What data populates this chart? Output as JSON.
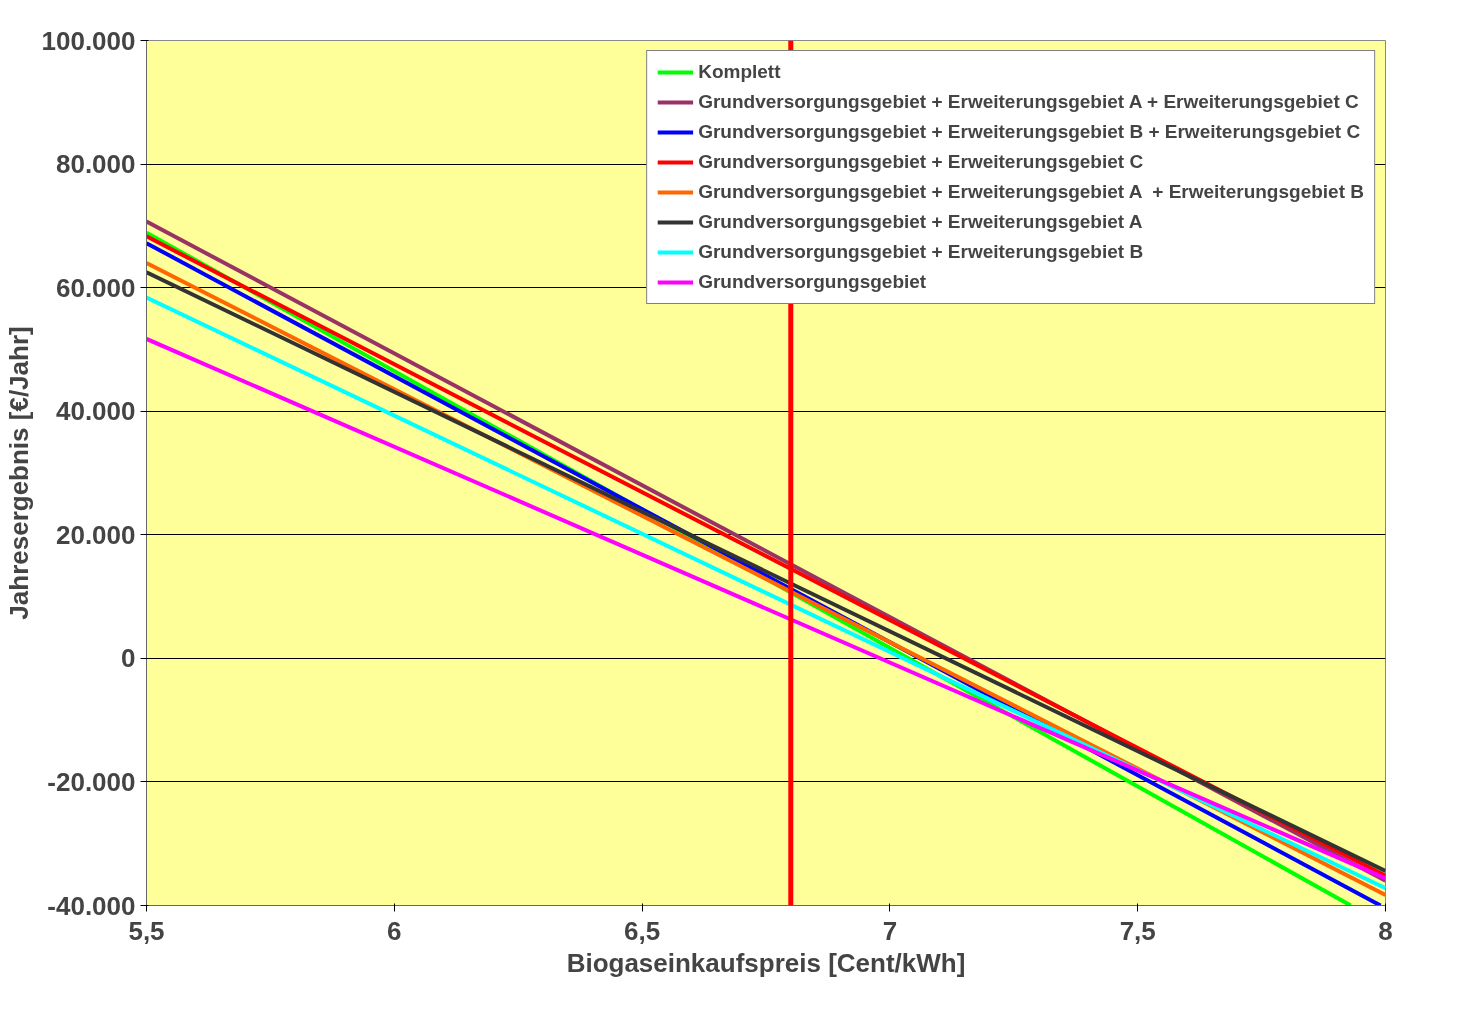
{
  "chart_data": {
    "type": "line",
    "xlabel": "Biogaseinkaufspreis [Cent/kWh]",
    "ylabel": "Jahresergebnis [€/Jahr]",
    "xlim": [
      5.5,
      8
    ],
    "xticks": [
      {
        "value": 5.5,
        "label": "5,5"
      },
      6,
      {
        "value": 6.5,
        "label": "6,5"
      },
      7,
      {
        "value": 7.5,
        "label": "7,5"
      },
      8
    ],
    "ylim": [
      -40000,
      100000
    ],
    "yticks": [
      {
        "value": -40000,
        "label": "-40.000"
      },
      {
        "value": -20000,
        "label": "-20.000"
      },
      {
        "value": 0,
        "label": "0"
      },
      {
        "value": 20000,
        "label": "20.000"
      },
      {
        "value": 40000,
        "label": "40.000"
      },
      {
        "value": 60000,
        "label": "60.000"
      },
      {
        "value": 80000,
        "label": "80.000"
      },
      {
        "value": 100000,
        "label": "100.000"
      }
    ],
    "grid": "y",
    "legend": "top right",
    "marker": "none",
    "line_style": "solid",
    "ref_lines": [
      {
        "axis": "x",
        "value": 6.8,
        "color": "#ff0000"
      }
    ],
    "series": [
      {
        "name": "Komplett",
        "color": "#00ff00",
        "x": [
          5.5,
          7.93
        ],
        "values": [
          68900,
          -40000
        ]
      },
      {
        "name": "Grundversorgungsgebiet + Erweiterungsgebiet A + Erweiterungsgebiet C",
        "color": "#993366",
        "x": [
          5.5,
          8
        ],
        "values": [
          70700,
          -36000
        ]
      },
      {
        "name": "Grundversorgungsgebiet + Erweiterungsgebiet B + Erweiterungsgebiet C",
        "color": "#0000ff",
        "x": [
          5.5,
          7.99
        ],
        "values": [
          67200,
          -40000
        ]
      },
      {
        "name": "Grundversorgungsgebiet + Erweiterungsgebiet C",
        "color": "#ff0000",
        "x": [
          5.5,
          8
        ],
        "values": [
          68300,
          -35200
        ]
      },
      {
        "name": "Grundversorgungsgebiet + Erweiterungsgebiet A  + Erweiterungsgebiet B",
        "color": "#ff6600",
        "x": [
          5.5,
          8
        ],
        "values": [
          64000,
          -38300
        ]
      },
      {
        "name": "Grundversorgungsgebiet + Erweiterungsgebiet A",
        "color": "#333333",
        "x": [
          5.5,
          8
        ],
        "values": [
          62500,
          -34400
        ]
      },
      {
        "name": "Grundversorgungsgebiet + Erweiterungsgebiet B",
        "color": "#00ffff",
        "x": [
          5.5,
          8
        ],
        "values": [
          58400,
          -37200
        ]
      },
      {
        "name": "Grundversorgungsgebiet",
        "color": "#ff00ff",
        "x": [
          5.5,
          8
        ],
        "values": [
          51700,
          -35600
        ]
      }
    ]
  }
}
